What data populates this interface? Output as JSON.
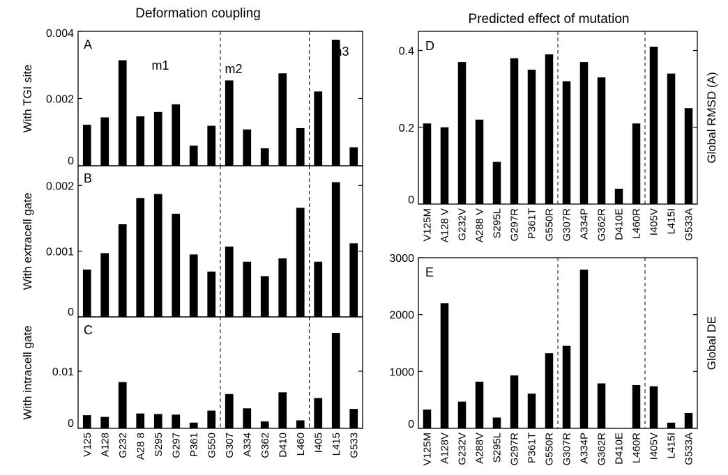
{
  "headings": {
    "left": "Deformation coupling",
    "right": "Predicted effect of mutation"
  },
  "chart_data": [
    {
      "panel": "A",
      "type": "bar",
      "ylabel": "With TGI site",
      "categories": [
        "V125",
        "A128",
        "G232",
        "A288",
        "S295",
        "G297",
        "P361",
        "G550",
        "G307",
        "A334",
        "G362",
        "D410",
        "L460",
        "I405",
        "L415",
        "G533"
      ],
      "values": [
        0.00122,
        0.00144,
        0.00314,
        0.00147,
        0.0016,
        0.00183,
        0.0006,
        0.00119,
        0.00254,
        0.00108,
        0.00052,
        0.00275,
        0.00112,
        0.00221,
        0.00375,
        0.00055
      ],
      "ylim": [
        0,
        0.004
      ],
      "yticks": [
        0,
        0.002,
        0.004
      ],
      "ytick_labels": [
        "0",
        "0.002",
        "0.004"
      ],
      "group_labels": [
        "m1",
        "m2",
        "m3"
      ],
      "group_dividers_after": [
        7,
        12
      ]
    },
    {
      "panel": "B",
      "type": "bar",
      "ylabel": "With extracell gate",
      "categories": [
        "V125",
        "A128",
        "G232",
        "A288",
        "S295",
        "G297",
        "P361",
        "G550",
        "G307",
        "A334",
        "G362",
        "D410",
        "L460",
        "I405",
        "L415",
        "G533"
      ],
      "values": [
        0.00072,
        0.00097,
        0.00141,
        0.00181,
        0.00187,
        0.00157,
        0.00095,
        0.00069,
        0.00107,
        0.00084,
        0.00062,
        0.00089,
        0.00166,
        0.00084,
        0.00205,
        0.00112
      ],
      "ylim": [
        0,
        0.0023
      ],
      "yticks": [
        0,
        0.001,
        0.002
      ],
      "ytick_labels": [
        "0",
        "0.001",
        "0.002"
      ],
      "group_dividers_after": [
        7,
        12
      ]
    },
    {
      "panel": "C",
      "type": "bar",
      "ylabel": "With intracell gate",
      "categories": [
        "V125",
        "A128",
        "G232",
        "A288",
        "S295",
        "G297",
        "P361",
        "G550",
        "G307",
        "A334",
        "G362",
        "D410",
        "L460",
        "I405",
        "L415",
        "G533"
      ],
      "category_labels": [
        "V125",
        "A128",
        "G232",
        "A28 8",
        "S295",
        "G297",
        "P361",
        "G550",
        "G307",
        "A334",
        "G362",
        "D410",
        "L460",
        "I405",
        "L415",
        "G533"
      ],
      "values": [
        0.0023,
        0.002,
        0.0081,
        0.0026,
        0.0025,
        0.0024,
        0.001,
        0.0031,
        0.006,
        0.0035,
        0.0012,
        0.0063,
        0.0014,
        0.0053,
        0.0167,
        0.0034
      ],
      "ylim": [
        0,
        0.0195
      ],
      "yticks": [
        0,
        0.01
      ],
      "ytick_labels": [
        "0",
        "0.01"
      ],
      "group_dividers_after": [
        7,
        12
      ]
    },
    {
      "panel": "D",
      "type": "bar",
      "ylabel": "Global RMSD (A)",
      "categories": [
        "V125M",
        "A128V",
        "G232V",
        "A288V",
        "S295L",
        "G297R",
        "P361T",
        "G550R",
        "G307R",
        "A334P",
        "G362R",
        "D410E",
        "L460R",
        "I405V",
        "L415I",
        "G533A"
      ],
      "category_labels": [
        "V125M",
        "A128 V",
        "G232V",
        "A288 V",
        "S295L",
        "G297R",
        "P361T",
        "G550R",
        "G307R",
        "A334P",
        "G362R",
        "D410E",
        "L460R",
        "I405V",
        "L415I",
        "G533A"
      ],
      "values": [
        0.21,
        0.2,
        0.37,
        0.22,
        0.11,
        0.38,
        0.35,
        0.39,
        0.32,
        0.37,
        0.33,
        0.04,
        0.21,
        0.41,
        0.34,
        0.25
      ],
      "ylim": [
        0,
        0.45
      ],
      "yticks": [
        0,
        0.2,
        0.4
      ],
      "ytick_labels": [
        "0",
        "0.2",
        "0.4"
      ],
      "group_dividers_after": [
        7,
        12
      ]
    },
    {
      "panel": "E",
      "type": "bar",
      "ylabel": "Global DE",
      "categories": [
        "V125M",
        "A128V",
        "G232V",
        "A288V",
        "S295L",
        "G297R",
        "P361T",
        "G550R",
        "G307R",
        "A334P",
        "G362R",
        "D410E",
        "L460R",
        "I405V",
        "L415I",
        "G533A"
      ],
      "values": [
        330,
        2200,
        470,
        820,
        190,
        930,
        610,
        1320,
        1450,
        2790,
        790,
        0,
        760,
        740,
        100,
        270
      ],
      "ylim": [
        0,
        3000
      ],
      "yticks": [
        0,
        1000,
        2000,
        3000
      ],
      "ytick_labels": [
        "0",
        "1000",
        "2000",
        "3000"
      ],
      "group_dividers_after": [
        7,
        12
      ]
    }
  ]
}
